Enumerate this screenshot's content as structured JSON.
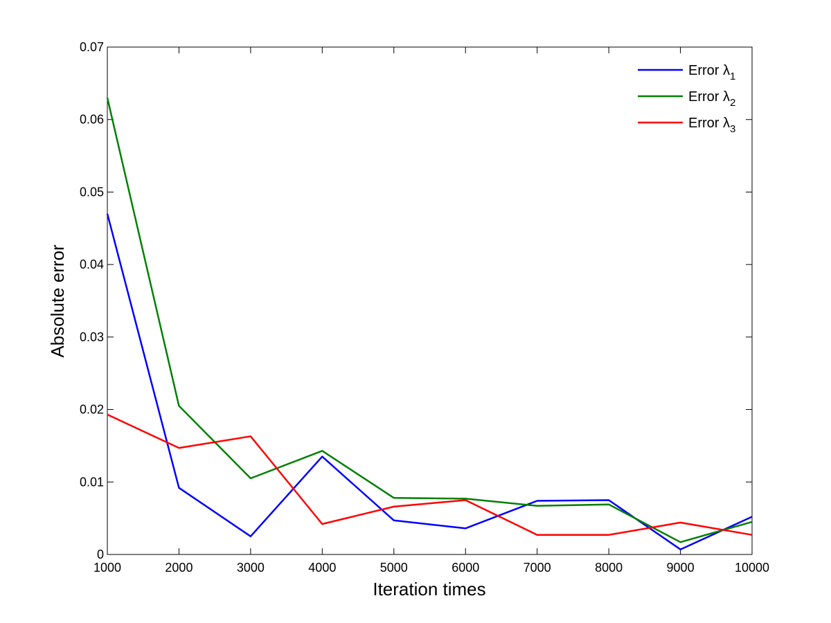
{
  "chart_data": {
    "type": "line",
    "title": "",
    "xlabel": "Iteration times",
    "ylabel": "Absolute error",
    "xlim": [
      1000,
      10000
    ],
    "ylim": [
      0,
      0.07
    ],
    "grid": false,
    "legend_position": "top-right",
    "x": [
      1000,
      2000,
      3000,
      4000,
      5000,
      6000,
      7000,
      8000,
      9000,
      10000
    ],
    "x_tick_labels": [
      "1000",
      "2000",
      "3000",
      "4000",
      "5000",
      "6000",
      "7000",
      "8000",
      "9000",
      "10000"
    ],
    "y_ticks": [
      0,
      0.01,
      0.02,
      0.03,
      0.04,
      0.05,
      0.06,
      0.07
    ],
    "y_tick_labels": [
      "0",
      "0.01",
      "0.02",
      "0.03",
      "0.04",
      "0.05",
      "0.06",
      "0.07"
    ],
    "series": [
      {
        "name": "Error λ1",
        "legend_text": "Error λ",
        "legend_sub": "1",
        "color": "#0000ff",
        "values": [
          0.047,
          0.0092,
          0.0025,
          0.0135,
          0.0047,
          0.0036,
          0.0074,
          0.0075,
          0.0007,
          0.0052
        ]
      },
      {
        "name": "Error λ2",
        "legend_text": "Error λ",
        "legend_sub": "2",
        "color": "#008000",
        "values": [
          0.063,
          0.0205,
          0.0105,
          0.0143,
          0.0078,
          0.0077,
          0.0067,
          0.0069,
          0.0017,
          0.0045
        ]
      },
      {
        "name": "Error λ3",
        "legend_text": "Error λ",
        "legend_sub": "3",
        "color": "#ff0000",
        "values": [
          0.0193,
          0.0147,
          0.0163,
          0.0042,
          0.0066,
          0.0075,
          0.0027,
          0.0027,
          0.0044,
          0.0027
        ]
      }
    ]
  }
}
